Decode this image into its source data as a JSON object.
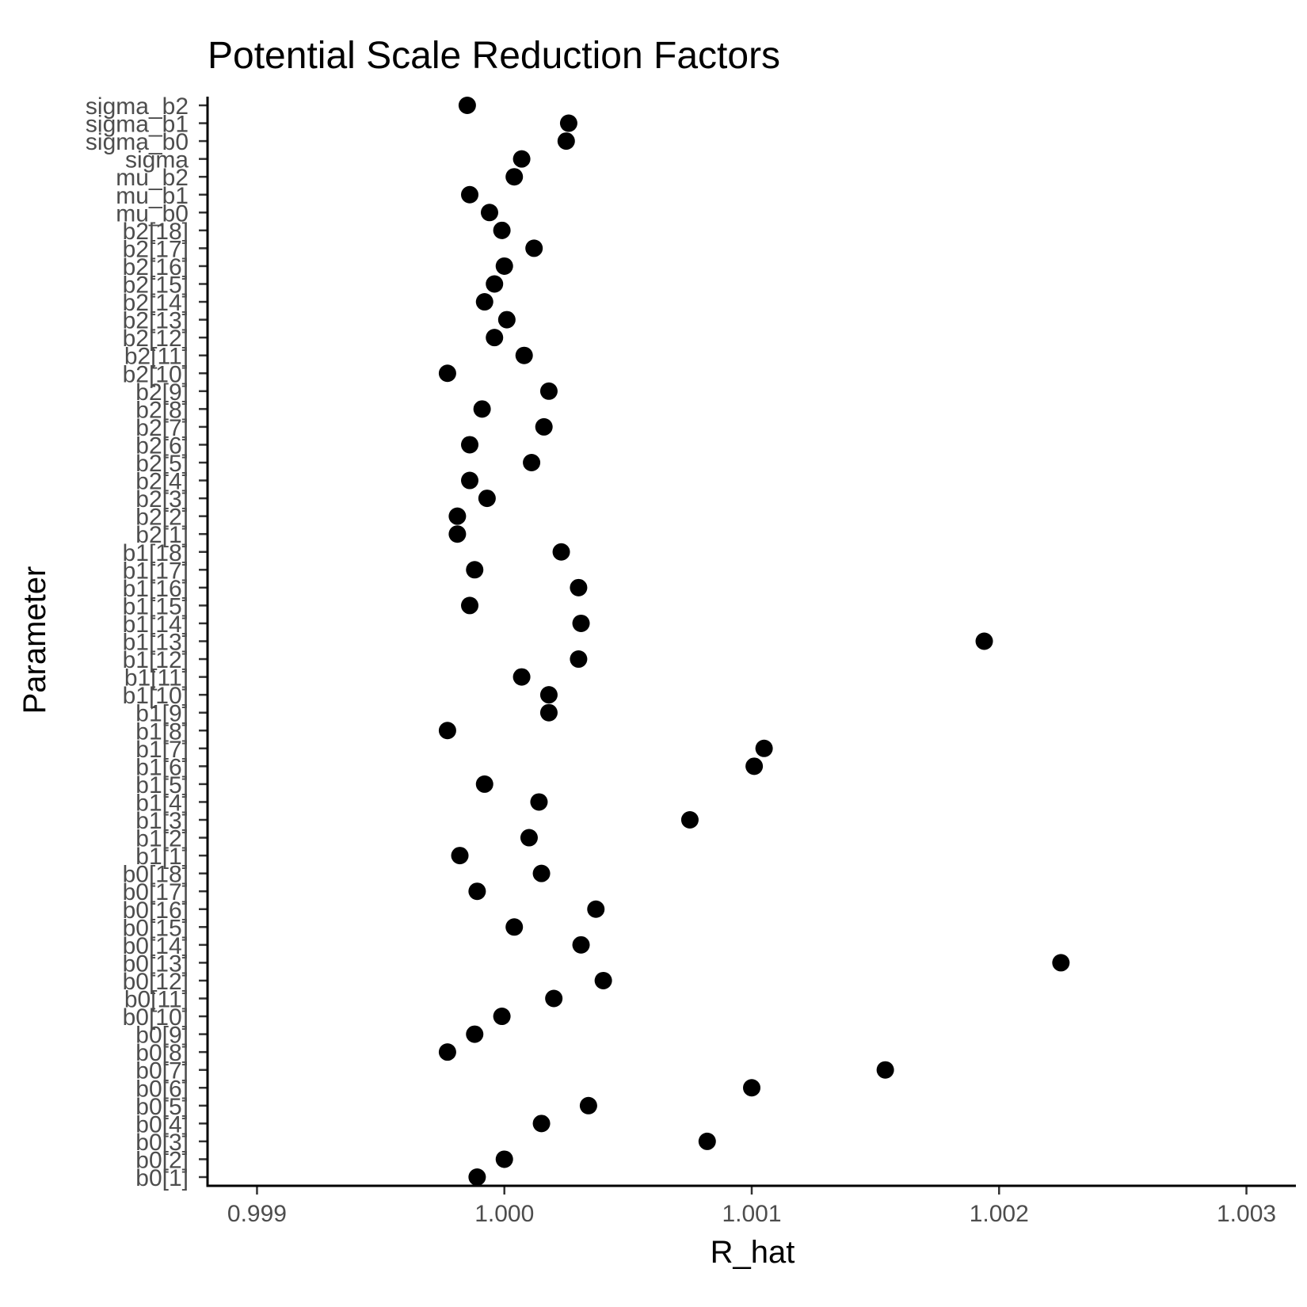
{
  "chart_data": {
    "type": "scatter",
    "title": "Potential Scale Reduction Factors",
    "xlabel": "R_hat",
    "ylabel": "Parameter",
    "xlim": [
      0.9988,
      1.0032
    ],
    "xticks": [
      "0.999",
      "1.000",
      "1.001",
      "1.002",
      "1.003"
    ],
    "xtick_values": [
      0.999,
      1.0,
      1.001,
      1.002,
      1.003
    ],
    "grid": false,
    "legend": "none",
    "point_color": "#000000",
    "points": [
      {
        "parameter": "b0[1]",
        "r_hat": 0.99989
      },
      {
        "parameter": "b0[2]",
        "r_hat": 1.0
      },
      {
        "parameter": "b0[3]",
        "r_hat": 1.00082
      },
      {
        "parameter": "b0[4]",
        "r_hat": 1.00015
      },
      {
        "parameter": "b0[5]",
        "r_hat": 1.00034
      },
      {
        "parameter": "b0[6]",
        "r_hat": 1.001
      },
      {
        "parameter": "b0[7]",
        "r_hat": 1.00154
      },
      {
        "parameter": "b0[8]",
        "r_hat": 0.99977
      },
      {
        "parameter": "b0[9]",
        "r_hat": 0.99988
      },
      {
        "parameter": "b0[10]",
        "r_hat": 0.99999
      },
      {
        "parameter": "b0[11]",
        "r_hat": 1.0002
      },
      {
        "parameter": "b0[12]",
        "r_hat": 1.0004
      },
      {
        "parameter": "b0[13]",
        "r_hat": 1.00225
      },
      {
        "parameter": "b0[14]",
        "r_hat": 1.00031
      },
      {
        "parameter": "b0[15]",
        "r_hat": 1.00004
      },
      {
        "parameter": "b0[16]",
        "r_hat": 1.00037
      },
      {
        "parameter": "b0[17]",
        "r_hat": 0.99989
      },
      {
        "parameter": "b0[18]",
        "r_hat": 1.00015
      },
      {
        "parameter": "b1[1]",
        "r_hat": 0.99982
      },
      {
        "parameter": "b1[2]",
        "r_hat": 1.0001
      },
      {
        "parameter": "b1[3]",
        "r_hat": 1.00075
      },
      {
        "parameter": "b1[4]",
        "r_hat": 1.00014
      },
      {
        "parameter": "b1[5]",
        "r_hat": 0.99992
      },
      {
        "parameter": "b1[6]",
        "r_hat": 1.00101
      },
      {
        "parameter": "b1[7]",
        "r_hat": 1.00105
      },
      {
        "parameter": "b1[8]",
        "r_hat": 0.99977
      },
      {
        "parameter": "b1[9]",
        "r_hat": 1.00018
      },
      {
        "parameter": "b1[10]",
        "r_hat": 1.00018
      },
      {
        "parameter": "b1[11]",
        "r_hat": 1.00007
      },
      {
        "parameter": "b1[12]",
        "r_hat": 1.0003
      },
      {
        "parameter": "b1[13]",
        "r_hat": 1.00194
      },
      {
        "parameter": "b1[14]",
        "r_hat": 1.00031
      },
      {
        "parameter": "b1[15]",
        "r_hat": 0.99986
      },
      {
        "parameter": "b1[16]",
        "r_hat": 1.0003
      },
      {
        "parameter": "b1[17]",
        "r_hat": 0.99988
      },
      {
        "parameter": "b1[18]",
        "r_hat": 1.00023
      },
      {
        "parameter": "b2[1]",
        "r_hat": 0.99981
      },
      {
        "parameter": "b2[2]",
        "r_hat": 0.99981
      },
      {
        "parameter": "b2[3]",
        "r_hat": 0.99993
      },
      {
        "parameter": "b2[4]",
        "r_hat": 0.99986
      },
      {
        "parameter": "b2[5]",
        "r_hat": 1.00011
      },
      {
        "parameter": "b2[6]",
        "r_hat": 0.99986
      },
      {
        "parameter": "b2[7]",
        "r_hat": 1.00016
      },
      {
        "parameter": "b2[8]",
        "r_hat": 0.99991
      },
      {
        "parameter": "b2[9]",
        "r_hat": 1.00018
      },
      {
        "parameter": "b2[10]",
        "r_hat": 0.99977
      },
      {
        "parameter": "b2[11]",
        "r_hat": 1.00008
      },
      {
        "parameter": "b2[12]",
        "r_hat": 0.99996
      },
      {
        "parameter": "b2[13]",
        "r_hat": 1.00001
      },
      {
        "parameter": "b2[14]",
        "r_hat": 0.99992
      },
      {
        "parameter": "b2[15]",
        "r_hat": 0.99996
      },
      {
        "parameter": "b2[16]",
        "r_hat": 1.0
      },
      {
        "parameter": "b2[17]",
        "r_hat": 1.00012
      },
      {
        "parameter": "b2[18]",
        "r_hat": 0.99999
      },
      {
        "parameter": "mu_b0",
        "r_hat": 0.99994
      },
      {
        "parameter": "mu_b1",
        "r_hat": 0.99986
      },
      {
        "parameter": "mu_b2",
        "r_hat": 1.00004
      },
      {
        "parameter": "sigma",
        "r_hat": 1.00007
      },
      {
        "parameter": "sigma_b0",
        "r_hat": 1.00025
      },
      {
        "parameter": "sigma_b1",
        "r_hat": 1.00026
      },
      {
        "parameter": "sigma_b2",
        "r_hat": 0.99985
      }
    ]
  }
}
